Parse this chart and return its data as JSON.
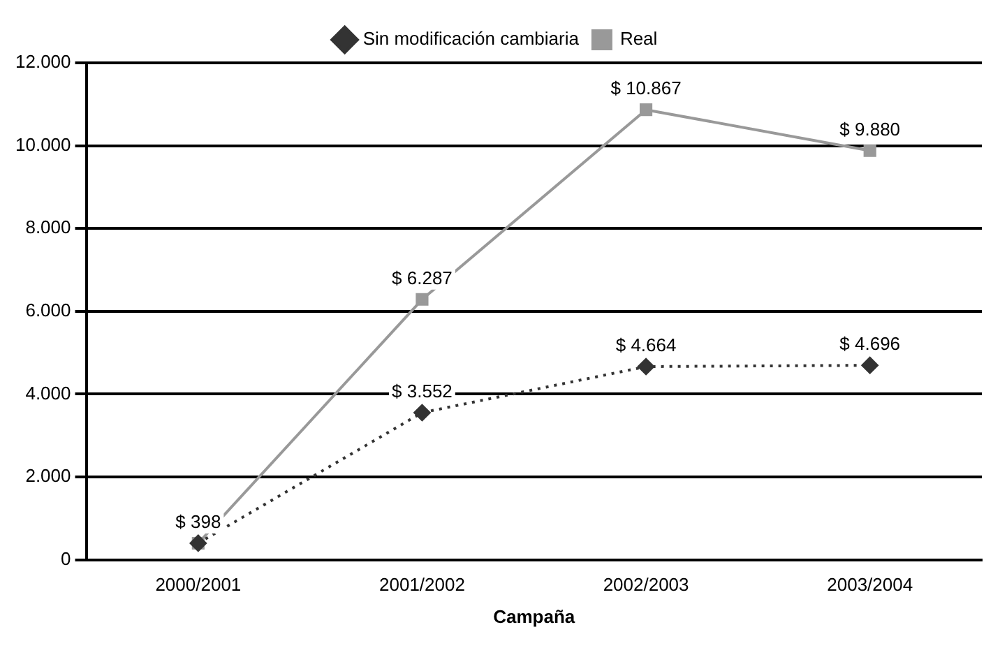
{
  "chart_data": {
    "type": "line",
    "xlabel": "Campaña",
    "categories": [
      "2000/2001",
      "2001/2002",
      "2002/2003",
      "2003/2004"
    ],
    "series": [
      {
        "name": "Sin modificación cambiaria",
        "color": "#333333",
        "marker": "diamond",
        "line_style": "dotted",
        "values": [
          400,
          3552,
          4664,
          4696
        ],
        "value_labels": [
          null,
          "$ 3.552",
          "$ 4.664",
          "$ 4.696"
        ]
      },
      {
        "name": "Real",
        "color": "#999999",
        "marker": "square",
        "line_style": "solid",
        "values": [
          398,
          6287,
          10867,
          9880
        ],
        "value_labels": [
          "$ 398",
          "$ 6.287",
          "$ 10.867",
          "$ 9.880"
        ]
      }
    ],
    "ylim": [
      0,
      12000
    ],
    "yticks": [
      {
        "value": 0,
        "label": "0"
      },
      {
        "value": 2000,
        "label": "2.000"
      },
      {
        "value": 4000,
        "label": "4.000"
      },
      {
        "value": 6000,
        "label": "6.000"
      },
      {
        "value": 8000,
        "label": "8.000"
      },
      {
        "value": 10000,
        "label": "10.000"
      },
      {
        "value": 12000,
        "label": "12.000"
      }
    ],
    "grid": "y",
    "legend": "top"
  }
}
